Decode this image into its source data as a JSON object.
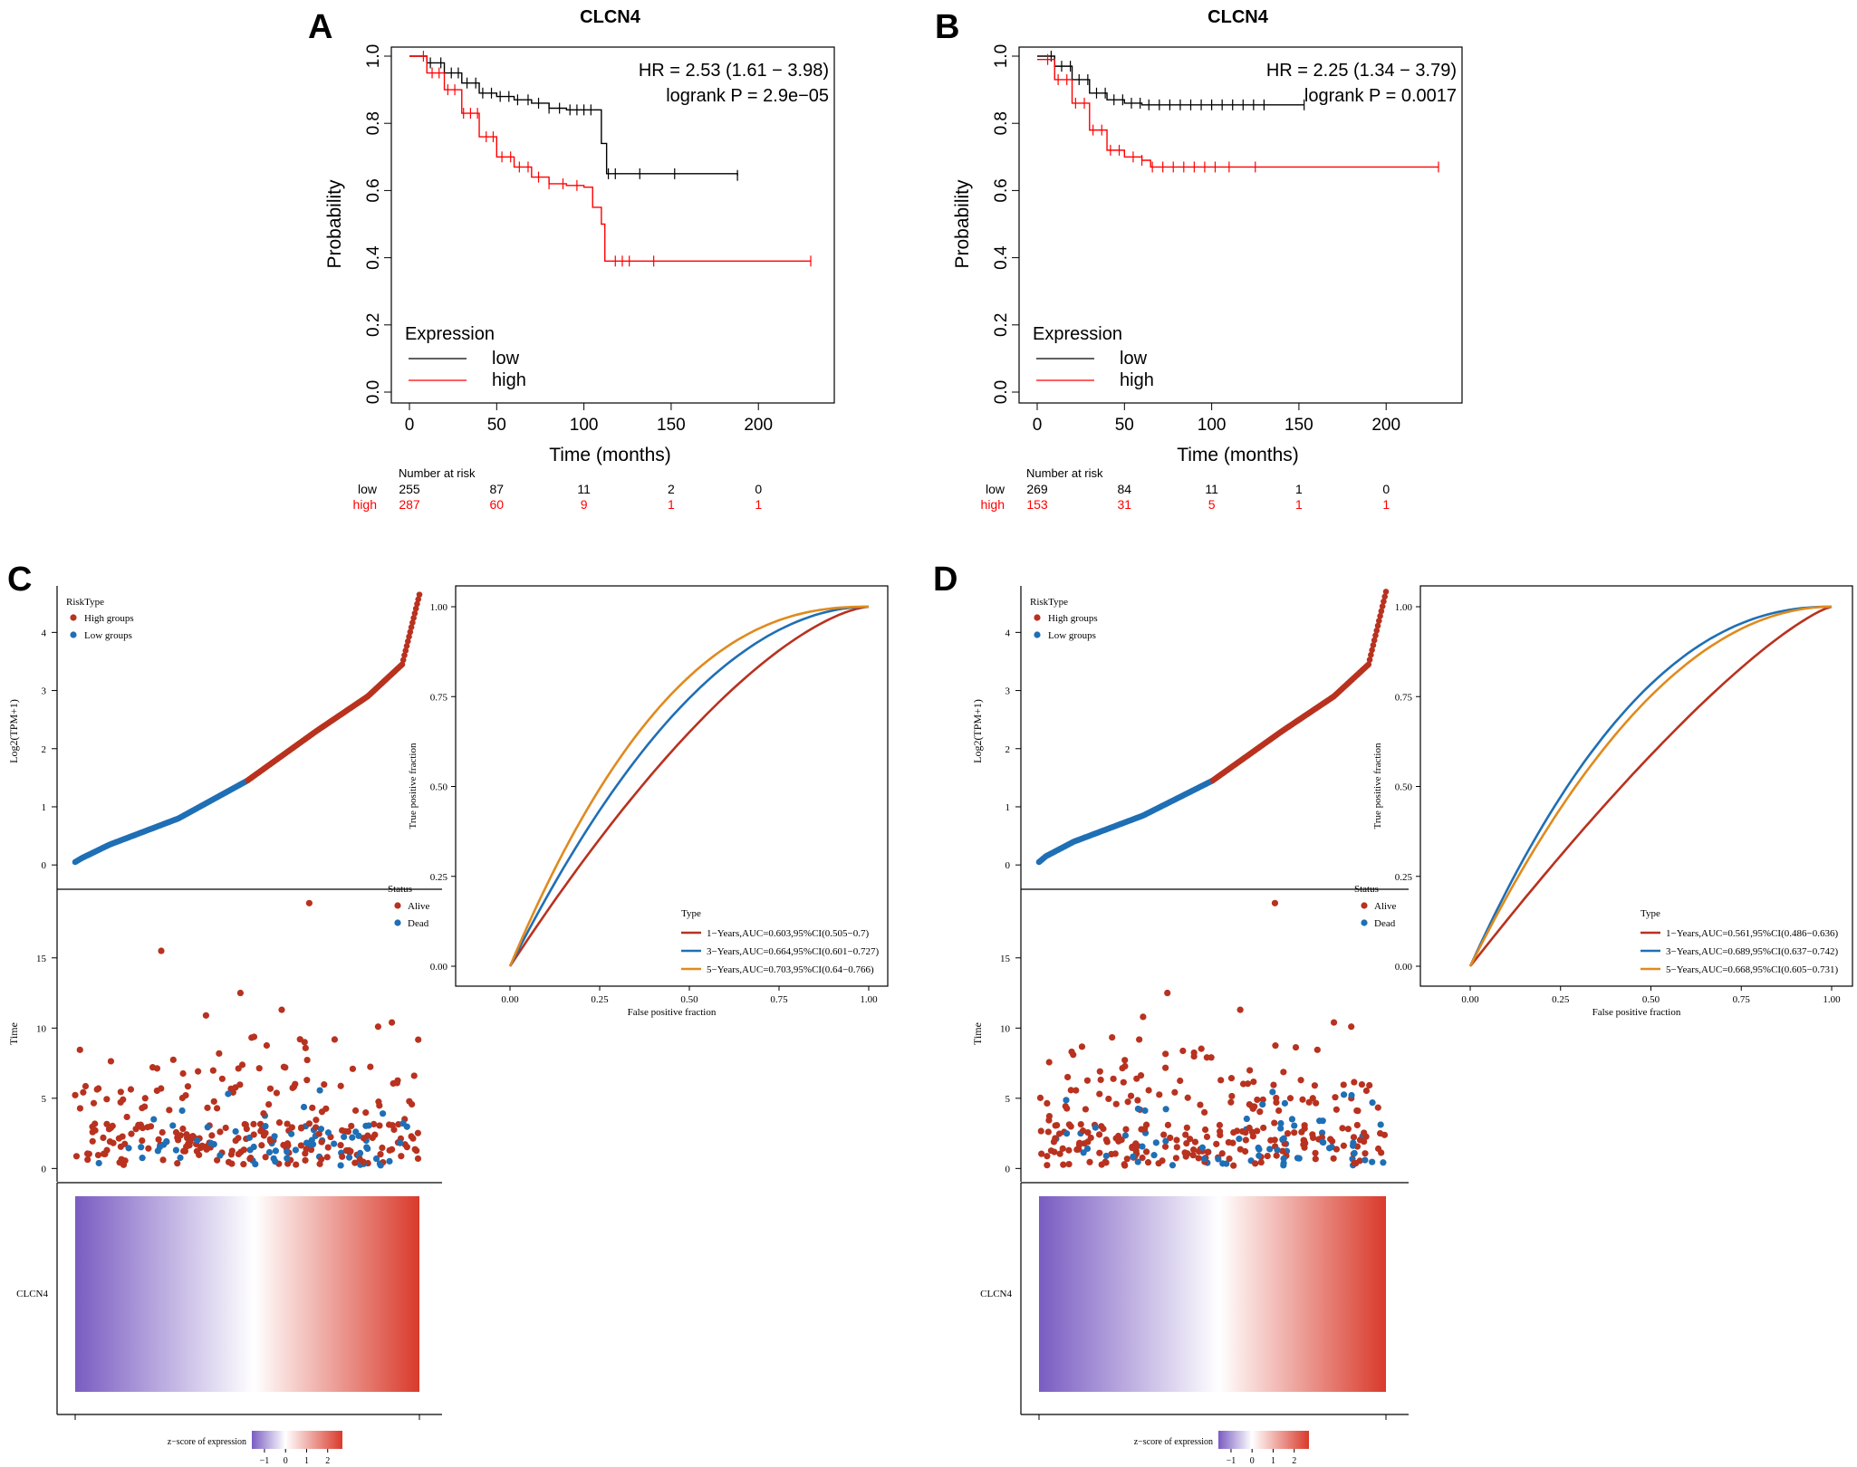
{
  "colors": {
    "km_low": "#000000",
    "km_high": "#ff0000",
    "risk_high": "#b8321f",
    "risk_low": "#1f6fb5",
    "roc_1y": "#b8321f",
    "roc_3y": "#1f6fb5",
    "roc_5y": "#e08a1e",
    "heat_low": "#7a5cc2",
    "heat_mid": "#ffffff",
    "heat_high": "#d93a2b"
  },
  "chart_data": [
    {
      "panel": "A",
      "type": "line",
      "subtype": "kaplan-meier",
      "title": "CLCN4",
      "xlabel": "Time (months)",
      "ylabel": "Probability",
      "xlim": [
        0,
        230
      ],
      "ylim": [
        0,
        1
      ],
      "xticks": [
        "0",
        "50",
        "100",
        "150",
        "200"
      ],
      "yticks": [
        "0.0",
        "0.2",
        "0.4",
        "0.6",
        "0.8",
        "1.0"
      ],
      "annotation": {
        "hr": "HR = 2.53 (1.61 − 3.98)",
        "logrank": "logrank P = 2.9e−05"
      },
      "legend": {
        "title": "Expression",
        "position": "bottom-left",
        "entries": [
          "low",
          "high"
        ]
      },
      "series": [
        {
          "name": "low",
          "x": [
            0,
            10,
            20,
            30,
            40,
            50,
            60,
            70,
            80,
            90,
            100,
            108,
            110,
            113,
            120,
            150,
            188
          ],
          "y": [
            1.0,
            0.98,
            0.95,
            0.92,
            0.89,
            0.88,
            0.87,
            0.86,
            0.845,
            0.84,
            0.84,
            0.84,
            0.74,
            0.65,
            0.65,
            0.65,
            0.645
          ],
          "censor_x": [
            12,
            18,
            24,
            28,
            33,
            38,
            42,
            47,
            52,
            57,
            62,
            68,
            74,
            80,
            86,
            92,
            96,
            100,
            104,
            114,
            118,
            132,
            152,
            188
          ]
        },
        {
          "name": "high",
          "x": [
            0,
            10,
            20,
            30,
            40,
            50,
            60,
            70,
            80,
            90,
            100,
            105,
            110,
            112,
            130,
            180,
            230
          ],
          "y": [
            1.0,
            0.95,
            0.9,
            0.83,
            0.76,
            0.7,
            0.67,
            0.64,
            0.62,
            0.615,
            0.61,
            0.55,
            0.5,
            0.39,
            0.39,
            0.39,
            0.39
          ],
          "censor_x": [
            8,
            13,
            17,
            22,
            26,
            31,
            35,
            39,
            44,
            48,
            53,
            58,
            63,
            68,
            74,
            80,
            88,
            96,
            118,
            122,
            126,
            140,
            230
          ]
        }
      ],
      "risk_table": {
        "title": "Number at risk",
        "times": [
          0,
          50,
          100,
          150,
          200
        ],
        "rows": [
          {
            "name": "low",
            "counts": [
              "255",
              "87",
              "11",
              "2",
              "0"
            ]
          },
          {
            "name": "high",
            "counts": [
              "287",
              "60",
              "9",
              "1",
              "1"
            ]
          }
        ]
      }
    },
    {
      "panel": "B",
      "type": "line",
      "subtype": "kaplan-meier",
      "title": "CLCN4",
      "xlabel": "Time (months)",
      "ylabel": "Probability",
      "xlim": [
        0,
        230
      ],
      "ylim": [
        0,
        1
      ],
      "xticks": [
        "0",
        "50",
        "100",
        "150",
        "200"
      ],
      "yticks": [
        "0.0",
        "0.2",
        "0.4",
        "0.6",
        "0.8",
        "1.0"
      ],
      "annotation": {
        "hr": "HR = 2.25 (1.34 − 3.79)",
        "logrank": "logrank P = 0.0017"
      },
      "legend": {
        "title": "Expression",
        "position": "bottom-left",
        "entries": [
          "low",
          "high"
        ]
      },
      "series": [
        {
          "name": "low",
          "x": [
            0,
            10,
            20,
            30,
            40,
            50,
            60,
            80,
            100,
            120,
            153
          ],
          "y": [
            1.0,
            0.97,
            0.93,
            0.89,
            0.87,
            0.86,
            0.855,
            0.855,
            0.855,
            0.855,
            0.855
          ],
          "censor_x": [
            8,
            14,
            19,
            24,
            29,
            34,
            39,
            44,
            49,
            54,
            59,
            64,
            70,
            76,
            82,
            88,
            94,
            100,
            106,
            112,
            118,
            124,
            130,
            153
          ]
        },
        {
          "name": "high",
          "x": [
            0,
            10,
            20,
            30,
            40,
            50,
            60,
            65,
            100,
            150,
            230
          ],
          "y": [
            0.99,
            0.93,
            0.86,
            0.78,
            0.72,
            0.7,
            0.69,
            0.67,
            0.67,
            0.67,
            0.67
          ],
          "censor_x": [
            6,
            12,
            17,
            22,
            27,
            32,
            37,
            42,
            47,
            55,
            60,
            66,
            72,
            78,
            84,
            90,
            96,
            102,
            110,
            125,
            230
          ]
        }
      ],
      "risk_table": {
        "title": "Number at risk",
        "times": [
          0,
          50,
          100,
          150,
          200
        ],
        "rows": [
          {
            "name": "low",
            "counts": [
              "269",
              "84",
              "11",
              "1",
              "0"
            ]
          },
          {
            "name": "high",
            "counts": [
              "153",
              "31",
              "5",
              "1",
              "1"
            ]
          }
        ]
      }
    },
    {
      "panel": "C",
      "type": "scatter",
      "subtype": "risk-score",
      "ylabel": "Log2(TPM+1)",
      "yticks": [
        "0",
        "1",
        "2",
        "3",
        "4"
      ],
      "ylim": [
        -0.2,
        4.8
      ],
      "n_points": 300,
      "split_fraction": 0.5,
      "curve": {
        "q": [
          0,
          0.02,
          0.1,
          0.3,
          0.5,
          0.7,
          0.85,
          0.95,
          1.0
        ],
        "v": [
          0.05,
          0.12,
          0.35,
          0.8,
          1.45,
          2.3,
          2.9,
          3.45,
          4.65
        ]
      },
      "legend": {
        "title": "RiskType",
        "entries": [
          "High groups",
          "Low groups"
        ]
      }
    },
    {
      "panel": "C",
      "type": "scatter",
      "subtype": "survival-status",
      "ylabel": "Time",
      "yticks": [
        "0",
        "5",
        "10",
        "15"
      ],
      "ylim": [
        -0.3,
        19.5
      ],
      "legend": {
        "title": "Status",
        "entries": [
          "Alive",
          "Dead"
        ]
      },
      "outliers": [
        {
          "q": 0.68,
          "t": 18.9
        },
        {
          "q": 0.25,
          "t": 15.5
        },
        {
          "q": 0.48,
          "t": 12.5
        },
        {
          "q": 0.6,
          "t": 11.3
        },
        {
          "q": 0.38,
          "t": 10.9
        },
        {
          "q": 0.92,
          "t": 10.4
        },
        {
          "q": 0.88,
          "t": 10.1
        }
      ],
      "seed": 11
    },
    {
      "panel": "C",
      "type": "heatmap",
      "row_label": "CLCN4",
      "colorbar": {
        "title": "z−score of expression",
        "ticks": [
          "−1",
          "0",
          "1",
          "2"
        ],
        "range": [
          -1.6,
          2.7
        ]
      }
    },
    {
      "panel": "C",
      "type": "line",
      "subtype": "roc",
      "xlabel": "False positive fraction",
      "ylabel": "True positive fraction",
      "xlim": [
        0,
        1
      ],
      "ylim": [
        0,
        1
      ],
      "xticks": [
        "0.00",
        "0.25",
        "0.50",
        "0.75",
        "1.00"
      ],
      "yticks": [
        "0.00",
        "0.25",
        "0.50",
        "0.75",
        "1.00"
      ],
      "legend": {
        "title": "Type",
        "position": "bottom-right"
      },
      "series": [
        {
          "name": "1−Years,AUC=0.603,95%CI(0.505−0.7)",
          "auc": 0.603
        },
        {
          "name": "3−Years,AUC=0.664,95%CI(0.601−0.727)",
          "auc": 0.664
        },
        {
          "name": "5−Years,AUC=0.703,95%CI(0.64−0.766)",
          "auc": 0.703
        }
      ]
    },
    {
      "panel": "D",
      "type": "scatter",
      "subtype": "risk-score",
      "ylabel": "Log2(TPM+1)",
      "yticks": [
        "0",
        "1",
        "2",
        "3",
        "4"
      ],
      "ylim": [
        -0.2,
        4.8
      ],
      "n_points": 300,
      "split_fraction": 0.5,
      "curve": {
        "q": [
          0,
          0.02,
          0.1,
          0.3,
          0.5,
          0.7,
          0.85,
          0.95,
          1.0
        ],
        "v": [
          0.05,
          0.15,
          0.4,
          0.85,
          1.45,
          2.3,
          2.9,
          3.45,
          4.7
        ]
      },
      "legend": {
        "title": "RiskType",
        "entries": [
          "High groups",
          "Low groups"
        ]
      }
    },
    {
      "panel": "D",
      "type": "scatter",
      "subtype": "survival-status",
      "ylabel": "Time",
      "yticks": [
        "0",
        "5",
        "10",
        "15"
      ],
      "ylim": [
        -0.3,
        19.5
      ],
      "legend": {
        "title": "Status",
        "entries": [
          "Alive",
          "Dead"
        ]
      },
      "outliers": [
        {
          "q": 0.68,
          "t": 18.9
        },
        {
          "q": 0.37,
          "t": 12.5
        },
        {
          "q": 0.58,
          "t": 11.3
        },
        {
          "q": 0.3,
          "t": 10.8
        },
        {
          "q": 0.85,
          "t": 10.4
        },
        {
          "q": 0.9,
          "t": 10.1
        }
      ],
      "seed": 29
    },
    {
      "panel": "D",
      "type": "heatmap",
      "row_label": "CLCN4",
      "colorbar": {
        "title": "z−score of expression",
        "ticks": [
          "−1",
          "0",
          "1",
          "2"
        ],
        "range": [
          -1.6,
          2.7
        ]
      }
    },
    {
      "panel": "D",
      "type": "line",
      "subtype": "roc",
      "xlabel": "False positive fraction",
      "ylabel": "True positive fraction",
      "xlim": [
        0,
        1
      ],
      "ylim": [
        0,
        1
      ],
      "xticks": [
        "0.00",
        "0.25",
        "0.50",
        "0.75",
        "1.00"
      ],
      "yticks": [
        "0.00",
        "0.25",
        "0.50",
        "0.75",
        "1.00"
      ],
      "legend": {
        "title": "Type",
        "position": "bottom-right"
      },
      "series": [
        {
          "name": "1−Years,AUC=0.561,95%CI(0.486−0.636)",
          "auc": 0.561
        },
        {
          "name": "3−Years,AUC=0.689,95%CI(0.637−0.742)",
          "auc": 0.689
        },
        {
          "name": "5−Years,AUC=0.668,95%CI(0.605−0.731)",
          "auc": 0.668
        }
      ]
    }
  ]
}
